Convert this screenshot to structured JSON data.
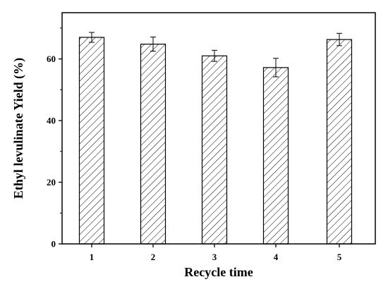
{
  "chart_data": {
    "type": "bar",
    "xlabel": "Recycle time",
    "ylabel": "Ethyl levulinate Yield (%)",
    "categories": [
      "1",
      "2",
      "3",
      "4",
      "5"
    ],
    "values": [
      67.0,
      64.8,
      61.0,
      57.2,
      66.3
    ],
    "errors": [
      1.6,
      2.3,
      1.8,
      3.0,
      2.0
    ],
    "ylim": [
      0,
      75
    ],
    "yticks": [
      0,
      20,
      40,
      60
    ],
    "bar_fill": "diagonal-hatch",
    "colors": {
      "bar_stroke": "#000000",
      "hatch": "#000000",
      "background": "#ffffff"
    },
    "grid": false,
    "legend": "none"
  }
}
